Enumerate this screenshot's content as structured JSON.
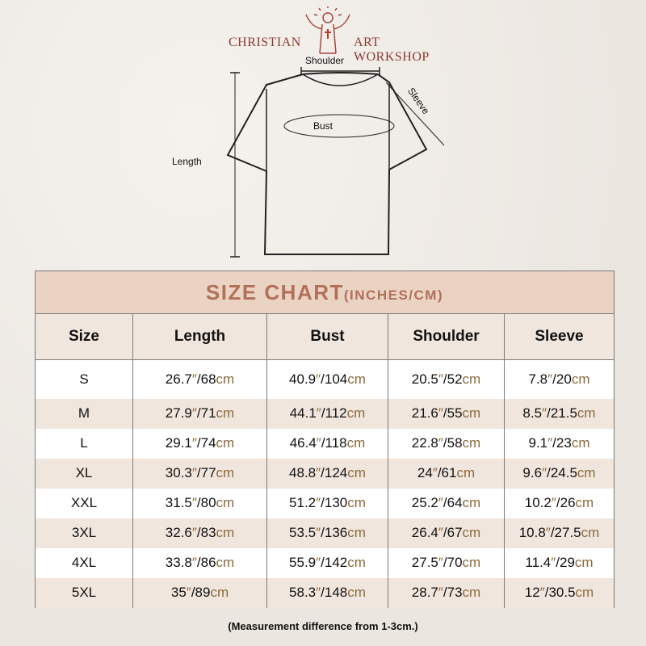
{
  "brand": {
    "left": "CHRISTIAN",
    "right": "ART WORKSHOP"
  },
  "diagram": {
    "shoulder": "Shoulder",
    "sleeve": "Sleeve",
    "bust": "Bust",
    "length": "Length"
  },
  "table": {
    "title": "SIZE CHART",
    "title_units": "(INCHES/CM)",
    "headers": [
      "Size",
      "Length",
      "Bust",
      "Shoulder",
      "Sleeve"
    ],
    "inch_mark": "″",
    "cm_unit": "cm",
    "rows": [
      {
        "size": "S",
        "vals": [
          [
            "26.7",
            "/68"
          ],
          [
            "40.9",
            "/104"
          ],
          [
            "20.5",
            "/52"
          ],
          [
            "7.8",
            "/20"
          ]
        ]
      },
      {
        "size": "M",
        "vals": [
          [
            "27.9",
            "/71"
          ],
          [
            "44.1",
            "/112"
          ],
          [
            "21.6",
            "/55"
          ],
          [
            "8.5",
            "/21.5"
          ]
        ]
      },
      {
        "size": "L",
        "vals": [
          [
            "29.1",
            "/74"
          ],
          [
            "46.4",
            "/118"
          ],
          [
            "22.8",
            "/58"
          ],
          [
            "9.1",
            "/23"
          ]
        ]
      },
      {
        "size": "XL",
        "vals": [
          [
            "30.3",
            "/77"
          ],
          [
            "48.8",
            "/124"
          ],
          [
            "24",
            "/61"
          ],
          [
            "9.6",
            "/24.5"
          ]
        ]
      },
      {
        "size": "XXL",
        "vals": [
          [
            "31.5",
            "/80"
          ],
          [
            "51.2",
            "/130"
          ],
          [
            "25.2",
            "/64"
          ],
          [
            "10.2",
            "/26"
          ]
        ]
      },
      {
        "size": "3XL",
        "vals": [
          [
            "32.6",
            "/83"
          ],
          [
            "53.5",
            "/136"
          ],
          [
            "26.4",
            "/67"
          ],
          [
            "10.8",
            "/27.5"
          ]
        ]
      },
      {
        "size": "4XL",
        "vals": [
          [
            "33.8",
            "/86"
          ],
          [
            "55.9",
            "/142"
          ],
          [
            "27.5",
            "/70"
          ],
          [
            "11.4",
            "/29"
          ]
        ]
      },
      {
        "size": "5XL",
        "vals": [
          [
            "35",
            "/89"
          ],
          [
            "58.3",
            "/148"
          ],
          [
            "28.7",
            "/73"
          ],
          [
            "12",
            "/30.5"
          ]
        ]
      }
    ]
  },
  "note": "(Measurement difference from 1-3cm.)"
}
